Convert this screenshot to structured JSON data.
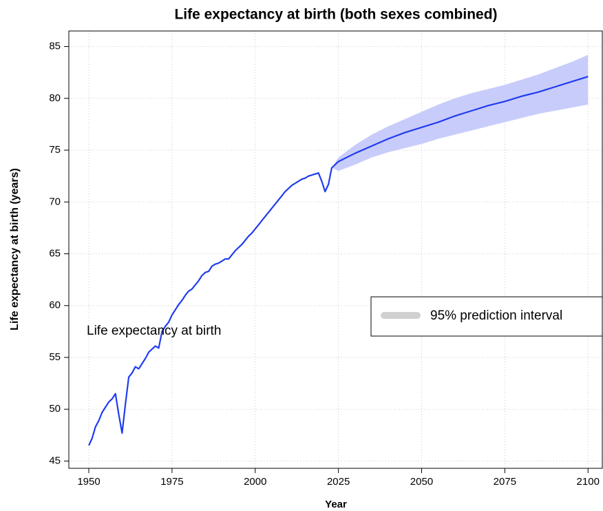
{
  "chart_data": {
    "type": "line",
    "title": "Life expectancy at birth (both sexes combined)",
    "xlabel": "Year",
    "ylabel": "Life expectancy at birth (years)",
    "x": [
      1950,
      1951,
      1952,
      1953,
      1954,
      1955,
      1956,
      1957,
      1958,
      1959,
      1960,
      1961,
      1962,
      1963,
      1964,
      1965,
      1966,
      1967,
      1968,
      1969,
      1970,
      1971,
      1972,
      1973,
      1974,
      1975,
      1976,
      1977,
      1978,
      1979,
      1980,
      1981,
      1982,
      1983,
      1984,
      1985,
      1986,
      1987,
      1988,
      1989,
      1990,
      1991,
      1992,
      1993,
      1994,
      1995,
      1996,
      1997,
      1998,
      1999,
      2000,
      2001,
      2002,
      2003,
      2004,
      2005,
      2006,
      2007,
      2008,
      2009,
      2010,
      2011,
      2012,
      2013,
      2014,
      2015,
      2016,
      2017,
      2018,
      2019,
      2020,
      2021,
      2022,
      2023,
      2025,
      2030,
      2035,
      2040,
      2045,
      2050,
      2055,
      2060,
      2065,
      2070,
      2075,
      2080,
      2085,
      2090,
      2095,
      2100
    ],
    "series": [
      {
        "name": "Life expectancy at birth",
        "color": "#1f3cf0",
        "values": [
          46.5,
          47.2,
          48.3,
          48.9,
          49.7,
          50.2,
          50.7,
          51.0,
          51.5,
          49.5,
          47.7,
          50.5,
          53.1,
          53.5,
          54.1,
          53.9,
          54.4,
          54.9,
          55.5,
          55.8,
          56.1,
          55.9,
          57.5,
          58.0,
          58.4,
          59.1,
          59.6,
          60.1,
          60.5,
          61.0,
          61.4,
          61.6,
          62.0,
          62.4,
          62.9,
          63.2,
          63.3,
          63.8,
          64.0,
          64.1,
          64.3,
          64.5,
          64.5,
          64.9,
          65.3,
          65.6,
          65.9,
          66.3,
          66.7,
          67.0,
          67.4,
          67.8,
          68.2,
          68.6,
          69.0,
          69.4,
          69.8,
          70.2,
          70.6,
          71.0,
          71.3,
          71.6,
          71.8,
          72.0,
          72.2,
          72.3,
          72.5,
          72.6,
          72.7,
          72.8,
          72.0,
          71.0,
          71.7,
          73.3,
          73.9,
          74.7,
          75.4,
          76.1,
          76.7,
          77.2,
          77.7,
          78.3,
          78.8,
          79.3,
          79.7,
          80.2,
          80.6,
          81.1,
          81.6,
          82.1
        ]
      }
    ],
    "band": {
      "name": "95% prediction interval",
      "color": "#c8ccfa",
      "legend_color": "#d0d0d0",
      "upper": [
        null,
        null,
        null,
        null,
        null,
        null,
        null,
        null,
        null,
        null,
        null,
        null,
        null,
        null,
        null,
        null,
        null,
        null,
        null,
        null,
        null,
        null,
        null,
        null,
        null,
        null,
        null,
        null,
        null,
        null,
        null,
        null,
        null,
        null,
        null,
        null,
        null,
        null,
        null,
        null,
        null,
        null,
        null,
        null,
        null,
        null,
        null,
        null,
        null,
        null,
        null,
        null,
        null,
        null,
        null,
        null,
        null,
        null,
        null,
        null,
        null,
        null,
        null,
        null,
        null,
        null,
        null,
        null,
        null,
        null,
        null,
        null,
        null,
        73.3,
        74.3,
        75.5,
        76.5,
        77.3,
        78.0,
        78.7,
        79.4,
        80.0,
        80.5,
        80.9,
        81.3,
        81.8,
        82.3,
        82.9,
        83.5,
        84.2
      ],
      "lower": [
        null,
        null,
        null,
        null,
        null,
        null,
        null,
        null,
        null,
        null,
        null,
        null,
        null,
        null,
        null,
        null,
        null,
        null,
        null,
        null,
        null,
        null,
        null,
        null,
        null,
        null,
        null,
        null,
        null,
        null,
        null,
        null,
        null,
        null,
        null,
        null,
        null,
        null,
        null,
        null,
        null,
        null,
        null,
        null,
        null,
        null,
        null,
        null,
        null,
        null,
        null,
        null,
        null,
        null,
        null,
        null,
        null,
        null,
        null,
        null,
        null,
        null,
        null,
        null,
        null,
        null,
        null,
        null,
        null,
        null,
        null,
        null,
        null,
        73.3,
        73.0,
        73.6,
        74.3,
        74.8,
        75.2,
        75.6,
        76.1,
        76.5,
        76.9,
        77.3,
        77.7,
        78.1,
        78.5,
        78.8,
        79.1,
        79.4
      ]
    },
    "xlim": [
      1944,
      2104.5
    ],
    "xticks": [
      1950,
      1975,
      2000,
      2025,
      2050,
      2075,
      2100
    ],
    "ylim": [
      44.3,
      86.5
    ],
    "yticks": [
      45,
      50,
      55,
      60,
      65,
      70,
      75,
      80,
      85
    ],
    "grid": true
  }
}
